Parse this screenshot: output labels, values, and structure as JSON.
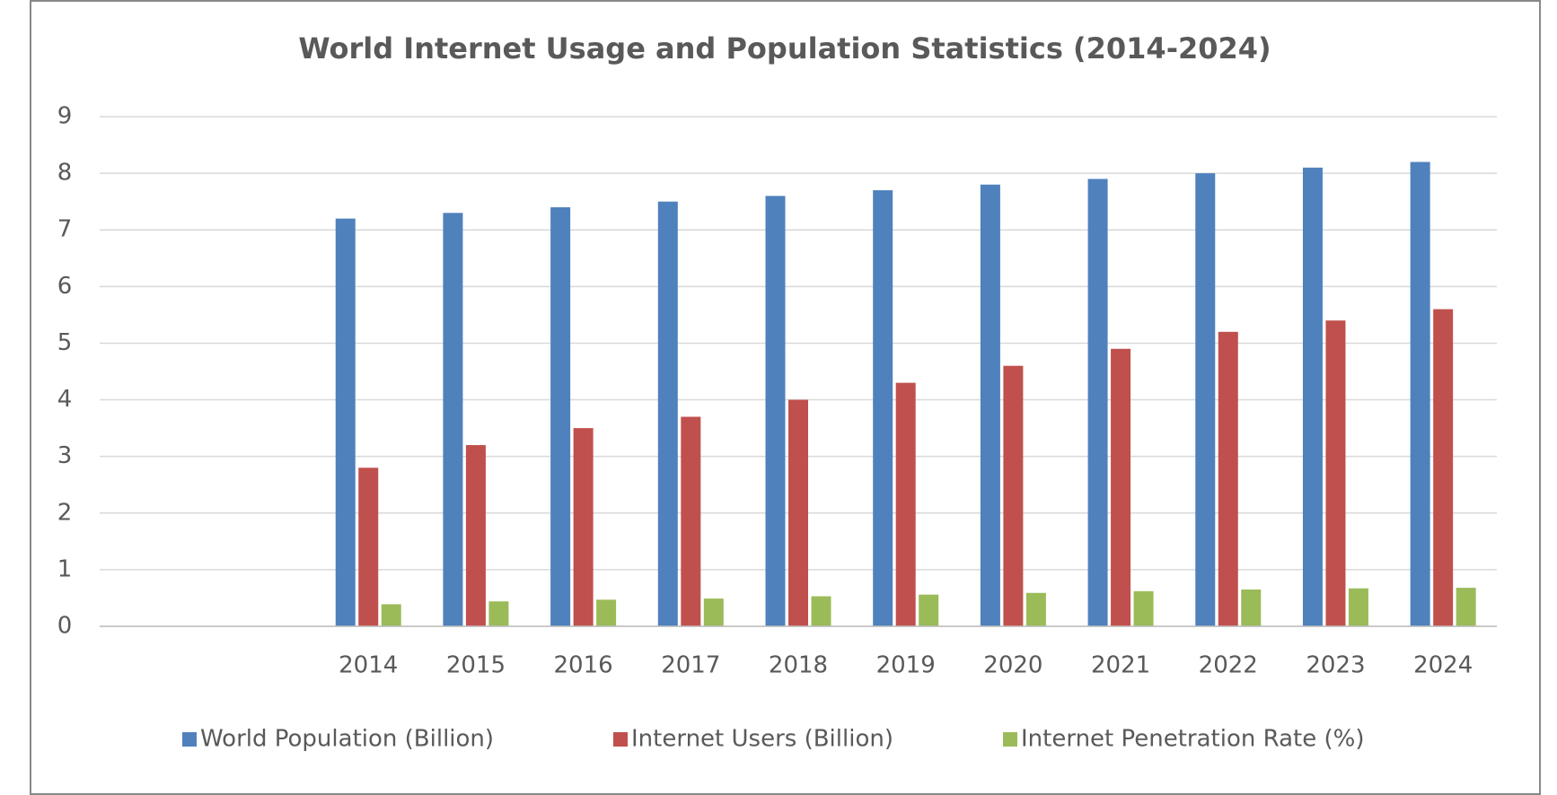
{
  "chart_data": {
    "type": "bar",
    "title": "World Internet Usage and Population Statistics (2014-2024)",
    "categories": [
      null,
      null,
      "2014",
      "2015",
      "2016",
      "2017",
      "2018",
      "2019",
      "2020",
      "2021",
      "2022",
      "2023",
      "2024"
    ],
    "series": [
      {
        "name": "World Population (Billion)",
        "color": "#4f81bd",
        "values": [
          null,
          null,
          7.2,
          7.3,
          7.4,
          7.5,
          7.6,
          7.7,
          7.8,
          7.9,
          8.0,
          8.1,
          8.2
        ]
      },
      {
        "name": "Internet Users (Billion)",
        "color": "#c0504d",
        "values": [
          null,
          null,
          2.8,
          3.2,
          3.5,
          3.7,
          4.0,
          4.3,
          4.6,
          4.9,
          5.2,
          5.4,
          5.6
        ]
      },
      {
        "name": "Internet Penetration Rate (%)",
        "color": "#9bbb59",
        "values": [
          null,
          null,
          0.39,
          0.44,
          0.47,
          0.49,
          0.53,
          0.56,
          0.59,
          0.62,
          0.65,
          0.67,
          0.68
        ]
      }
    ],
    "ylim": [
      0,
      9
    ],
    "yticks": [
      0,
      1,
      2,
      3,
      4,
      5,
      6,
      7,
      8,
      9
    ],
    "grid": true,
    "legend": "bottom"
  }
}
